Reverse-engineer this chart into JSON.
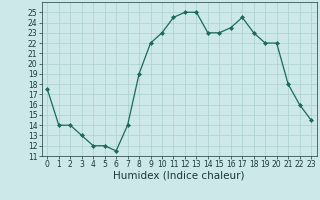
{
  "x": [
    0,
    1,
    2,
    3,
    4,
    5,
    6,
    7,
    8,
    9,
    10,
    11,
    12,
    13,
    14,
    15,
    16,
    17,
    18,
    19,
    20,
    21,
    22,
    23
  ],
  "y": [
    17.5,
    14,
    14,
    13,
    12,
    12,
    11.5,
    14,
    19,
    22,
    23,
    24.5,
    25,
    25,
    23,
    23,
    23.5,
    24.5,
    23,
    22,
    22,
    18,
    16,
    14.5
  ],
  "line_color": "#1a6b5a",
  "marker": "D",
  "marker_size": 2.0,
  "bg_color": "#cce8e8",
  "grid_color": "#aacfcf",
  "xlabel": "Humidex (Indice chaleur)",
  "ylim": [
    11,
    26
  ],
  "xlim": [
    -0.5,
    23.5
  ],
  "yticks": [
    11,
    12,
    13,
    14,
    15,
    16,
    17,
    18,
    19,
    20,
    21,
    22,
    23,
    24,
    25
  ],
  "xticks": [
    0,
    1,
    2,
    3,
    4,
    5,
    6,
    7,
    8,
    9,
    10,
    11,
    12,
    13,
    14,
    15,
    16,
    17,
    18,
    19,
    20,
    21,
    22,
    23
  ],
  "tick_fontsize": 5.5,
  "xlabel_fontsize": 7.5,
  "label_color": "#1a3a3a",
  "linewidth": 0.9
}
